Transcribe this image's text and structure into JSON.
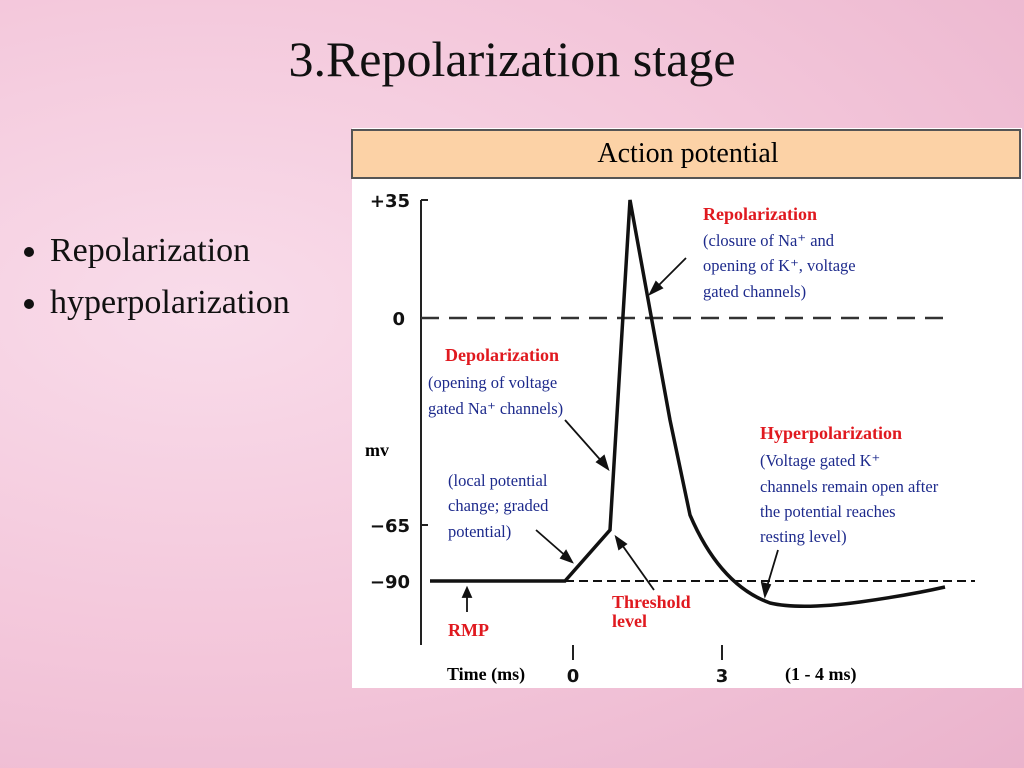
{
  "title": "3.Repolarization stage",
  "bullets": [
    "Repolarization",
    "hyperpolarization"
  ],
  "figure": {
    "header": "Action potential",
    "y_labels": [
      "+35",
      "0",
      "−65",
      "−90"
    ],
    "y_axis_label": "mv",
    "x_axis_label": "Time (ms)",
    "x_labels": [
      "0",
      "3"
    ],
    "x_note": "(1 - 4 ms)",
    "repolarization": {
      "title": "Repolarization",
      "lines": [
        "(closure of Na⁺ and",
        "opening of K⁺, voltage",
        "gated channels)"
      ]
    },
    "depolarization": {
      "title": "Depolarization",
      "lines": [
        "(opening of voltage",
        "gated Na⁺ channels)"
      ]
    },
    "local_potential": {
      "lines": [
        "(local potential",
        "change; graded",
        "potential)"
      ]
    },
    "hyperpolarization": {
      "title": "Hyperpolarization",
      "lines": [
        "(Voltage gated K⁺",
        "channels remain open after",
        "the potential reaches",
        "resting level)"
      ]
    },
    "threshold": [
      "Threshold",
      "level"
    ],
    "rmp": "RMP"
  }
}
